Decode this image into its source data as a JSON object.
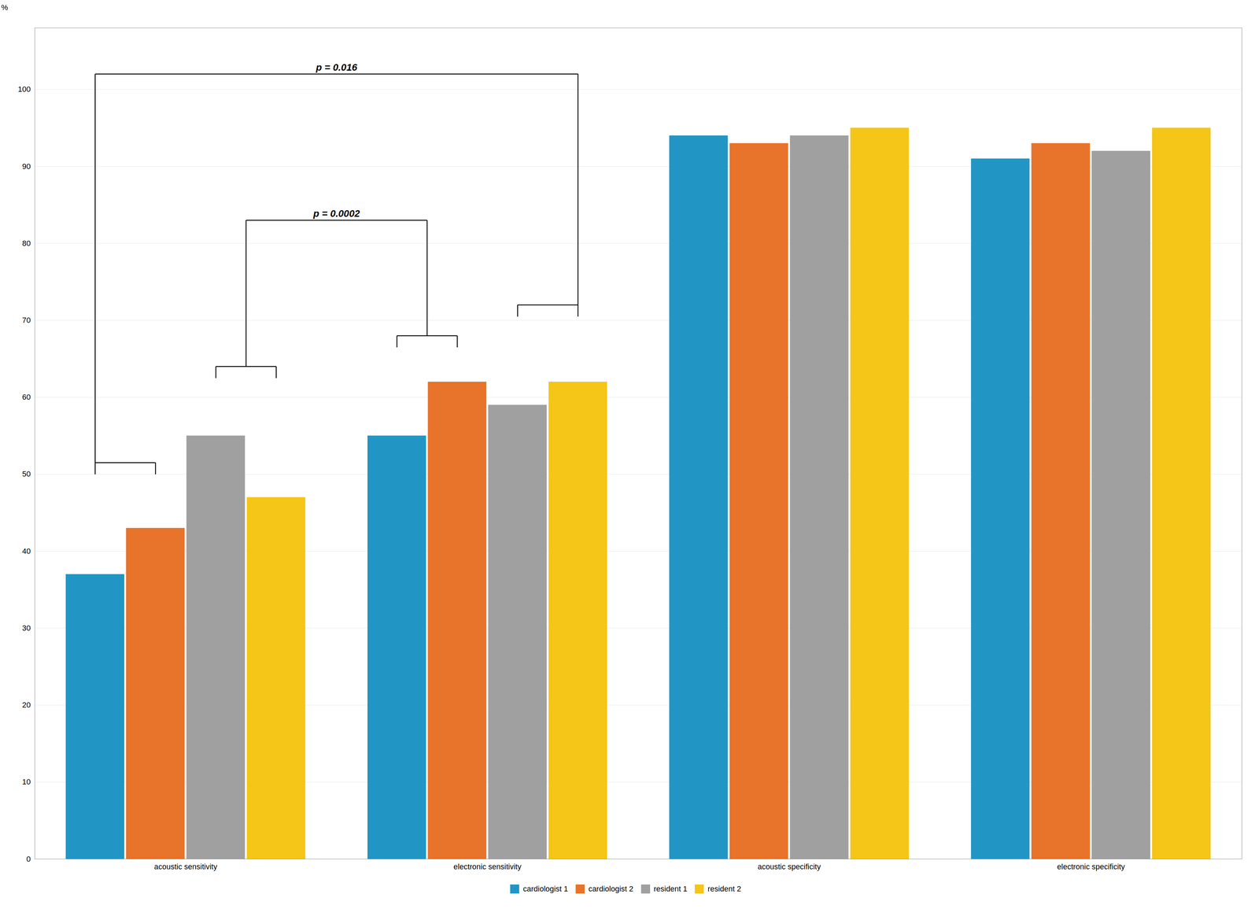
{
  "chart_data": {
    "type": "bar",
    "categories": [
      "acoustic sensitivity",
      "electronic sensitivity",
      "acoustic specificity",
      "electronic specificity"
    ],
    "series": [
      {
        "name": "cardiologist 1",
        "color": "#2196C4",
        "values": [
          37,
          55,
          94,
          91
        ]
      },
      {
        "name": "cardiologist 2",
        "color": "#E8732A",
        "values": [
          43,
          62,
          93,
          93
        ]
      },
      {
        "name": "resident 1",
        "color": "#A0A0A0",
        "values": [
          55,
          59,
          94,
          92
        ]
      },
      {
        "name": "resident 2",
        "color": "#F5C518",
        "values": [
          47,
          62,
          95,
          95
        ]
      }
    ],
    "ylabel": "%",
    "ylim": [
      0,
      108
    ],
    "yticks": [
      0,
      10,
      20,
      30,
      40,
      50,
      60,
      70,
      80,
      90,
      100
    ],
    "grid": true,
    "legend": "bottom",
    "brackets": [
      {
        "category": "acoustic sensitivity",
        "from": "cardiologist 1",
        "to": "cardiologist 2",
        "height": 51.5
      },
      {
        "category": "acoustic sensitivity",
        "from": "resident 1",
        "to": "resident 2",
        "height": 64
      },
      {
        "category": "electronic sensitivity",
        "from": "cardiologist 1",
        "to": "cardiologist 2",
        "height": 68
      },
      {
        "category": "electronic sensitivity",
        "from": "resident 1",
        "to": "resident 2",
        "height": 72
      }
    ],
    "annotations": [
      {
        "text": "p = 0.0002",
        "height": 83,
        "feet": [
          {
            "category": "acoustic sensitivity",
            "series": [
              "resident 1",
              "resident 2"
            ],
            "from_height": 64
          },
          {
            "category": "electronic sensitivity",
            "series": [
              "cardiologist 1",
              "cardiologist 2"
            ],
            "from_height": 68
          }
        ]
      },
      {
        "text": "p = 0.016",
        "height": 102,
        "feet": [
          {
            "category": "acoustic sensitivity",
            "series": [
              "cardiologist 1"
            ],
            "from_height": 51.5
          },
          {
            "category": "electronic sensitivity",
            "series": [
              "resident 2"
            ],
            "from_height": 72
          }
        ]
      }
    ]
  }
}
